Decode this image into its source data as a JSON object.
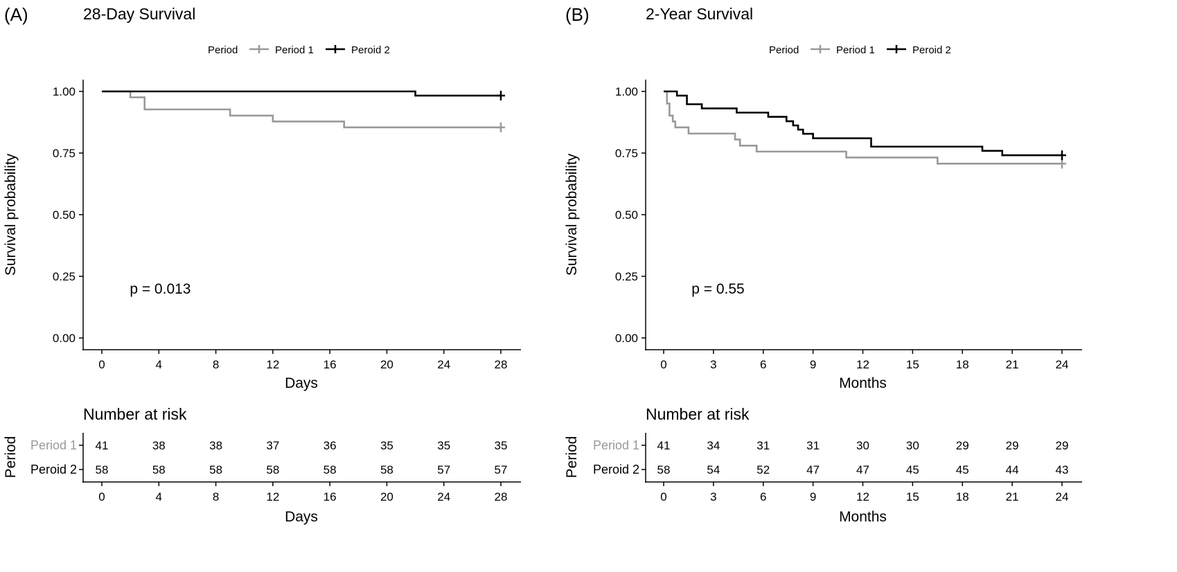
{
  "chart_data": [
    {
      "type": "line",
      "panel_label": "(A)",
      "title": "28-Day Survival",
      "legend": {
        "title": "Period",
        "position": "top",
        "entries": [
          {
            "name": "Period 1",
            "color": "#999999"
          },
          {
            "name": "Peroid 2",
            "color": "#000000"
          }
        ]
      },
      "xlabel": "Days",
      "ylabel": "Survival probability",
      "xlim": [
        0,
        28
      ],
      "ylim": [
        0,
        1
      ],
      "x_ticks": [
        "0",
        "4",
        "8",
        "12",
        "16",
        "20",
        "24",
        "28"
      ],
      "y_ticks": [
        "0.00",
        "0.25",
        "0.50",
        "0.75",
        "1.00"
      ],
      "grid": false,
      "pvalue": "p = 0.013",
      "series": [
        {
          "name": "Period 1",
          "color": "#999999",
          "steps": [
            [
              0,
              1.0
            ],
            [
              2,
              0.976
            ],
            [
              3,
              0.927
            ],
            [
              9,
              0.902
            ],
            [
              12,
              0.878
            ],
            [
              17,
              0.854
            ],
            [
              28,
              0.854
            ]
          ],
          "censor": [
            [
              28,
              0.854
            ]
          ]
        },
        {
          "name": "Peroid 2",
          "color": "#000000",
          "steps": [
            [
              0,
              1.0
            ],
            [
              22,
              0.983
            ],
            [
              28,
              0.983
            ]
          ],
          "censor": [
            [
              28,
              0.983
            ]
          ]
        }
      ],
      "risk_table": {
        "title": "Number at risk",
        "ylabel": "Period",
        "xlabel": "Days",
        "times": [
          "0",
          "4",
          "8",
          "12",
          "16",
          "20",
          "24",
          "28"
        ],
        "rows": [
          {
            "name": "Period 1",
            "color": "#999999",
            "values": [
              "41",
              "38",
              "38",
              "37",
              "36",
              "35",
              "35",
              "35"
            ]
          },
          {
            "name": "Peroid 2",
            "color": "#000000",
            "values": [
              "58",
              "58",
              "58",
              "58",
              "58",
              "58",
              "57",
              "57"
            ]
          }
        ]
      }
    },
    {
      "type": "line",
      "panel_label": "(B)",
      "title": "2-Year Survival",
      "legend": {
        "title": "Period",
        "position": "top",
        "entries": [
          {
            "name": "Period 1",
            "color": "#999999"
          },
          {
            "name": "Peroid 2",
            "color": "#000000"
          }
        ]
      },
      "xlabel": "Months",
      "ylabel": "Survival probability",
      "xlim": [
        0,
        24
      ],
      "ylim": [
        0,
        1
      ],
      "x_ticks": [
        "0",
        "3",
        "6",
        "9",
        "12",
        "15",
        "18",
        "21",
        "24"
      ],
      "y_ticks": [
        "0.00",
        "0.25",
        "0.50",
        "0.75",
        "1.00"
      ],
      "grid": false,
      "pvalue": "p = 0.55",
      "series": [
        {
          "name": "Period 1",
          "color": "#999999",
          "steps": [
            [
              0,
              1.0
            ],
            [
              0.2,
              0.951
            ],
            [
              0.35,
              0.902
            ],
            [
              0.55,
              0.878
            ],
            [
              0.7,
              0.854
            ],
            [
              1.5,
              0.829
            ],
            [
              4.3,
              0.805
            ],
            [
              4.6,
              0.78
            ],
            [
              5.6,
              0.756
            ],
            [
              11,
              0.732
            ],
            [
              16.5,
              0.707
            ],
            [
              24,
              0.707
            ]
          ],
          "censor": [
            [
              24,
              0.707
            ]
          ]
        },
        {
          "name": "Peroid 2",
          "color": "#000000",
          "steps": [
            [
              0,
              1.0
            ],
            [
              0.8,
              0.983
            ],
            [
              1.4,
              0.948
            ],
            [
              2.3,
              0.931
            ],
            [
              4.4,
              0.914
            ],
            [
              6.3,
              0.897
            ],
            [
              7.4,
              0.879
            ],
            [
              7.8,
              0.862
            ],
            [
              8.1,
              0.845
            ],
            [
              8.4,
              0.828
            ],
            [
              9.0,
              0.81
            ],
            [
              12.5,
              0.776
            ],
            [
              19.2,
              0.759
            ],
            [
              20.4,
              0.741
            ],
            [
              24,
              0.741
            ]
          ],
          "censor": [
            [
              24,
              0.741
            ]
          ]
        }
      ],
      "risk_table": {
        "title": "Number at risk",
        "ylabel": "Period",
        "xlabel": "Months",
        "times": [
          "0",
          "3",
          "6",
          "9",
          "12",
          "15",
          "18",
          "21",
          "24"
        ],
        "rows": [
          {
            "name": "Period 1",
            "color": "#999999",
            "values": [
              "41",
              "34",
              "31",
              "31",
              "30",
              "30",
              "29",
              "29",
              "29"
            ]
          },
          {
            "name": "Peroid 2",
            "color": "#000000",
            "values": [
              "58",
              "54",
              "52",
              "47",
              "47",
              "45",
              "45",
              "44",
              "43"
            ]
          }
        ]
      }
    }
  ]
}
